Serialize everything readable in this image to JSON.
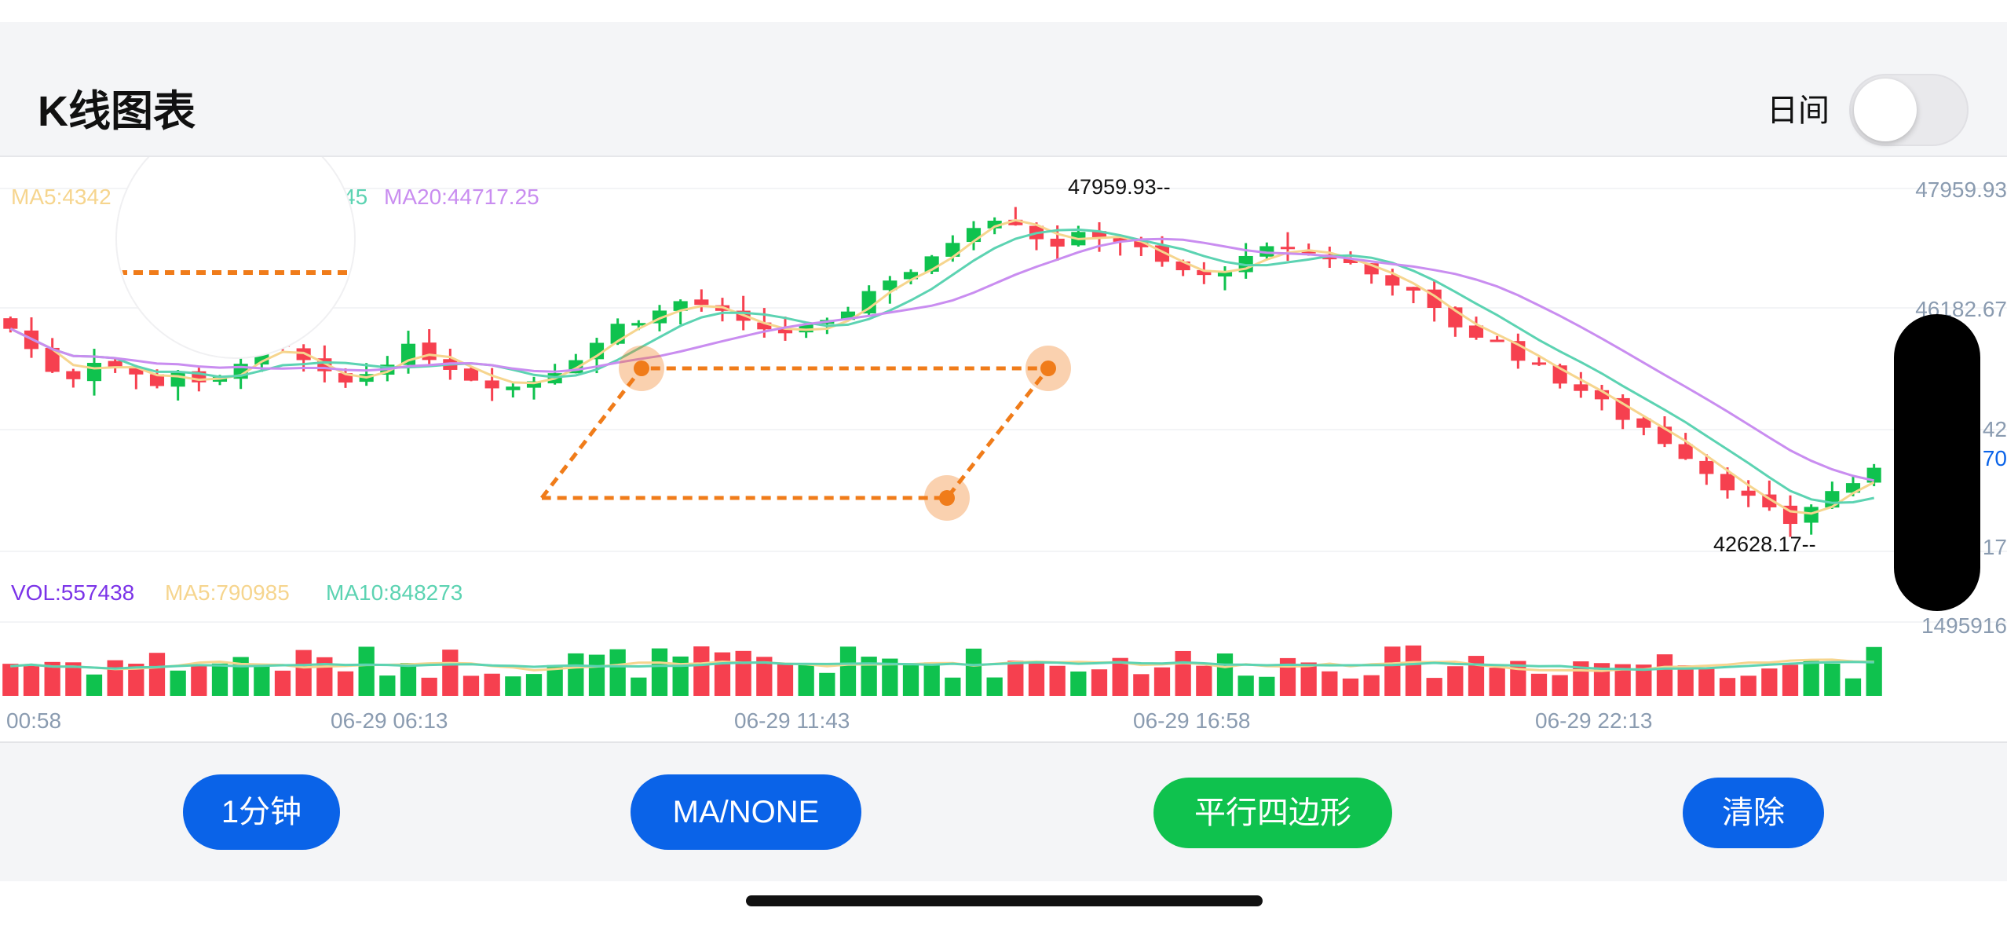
{
  "header": {
    "title": "K线图表",
    "day_label": "日间",
    "day_toggle_on": false
  },
  "legend": {
    "ma5": "MA5:4342",
    "ma10_partial": "45",
    "ma20": "MA20:44717.25"
  },
  "volume_legend": {
    "vol": "VOL:557438",
    "ma5": "MA5:790985",
    "ma10": "MA10:848273"
  },
  "price_axis": [
    "47959.93",
    "46182.67",
    "42",
    "70",
    "17",
    "1495916"
  ],
  "markers": {
    "high": "47959.93--",
    "low": "42628.17--"
  },
  "time_axis": [
    "00:58",
    "06-29 06:13",
    "06-29 11:43",
    "06-29 16:58",
    "06-29 22:13"
  ],
  "buttons": {
    "interval": "1分钟",
    "indicator": "MA/NONE",
    "drawing": "平行四边形",
    "clear": "清除"
  },
  "colors": {
    "up": "#0fc24e",
    "down": "#f6404f",
    "ma5": "#f6d58e",
    "ma10": "#5cd3b2",
    "ma20": "#c98df0",
    "drawing": "#f07c1a",
    "accent_blue": "#0a63e8"
  },
  "chart_data": {
    "type": "candlestick",
    "price_range": [
      42628.17,
      47959.93
    ],
    "high": 47959.93,
    "low": 42628.17,
    "candle_count": 100,
    "close_trend": [
      45900,
      45600,
      45300,
      45200,
      45450,
      45350,
      45200,
      45100,
      45300,
      45050,
      45150,
      45450,
      45650,
      45580,
      45400,
      45200,
      45100,
      45250,
      45450,
      45600,
      45500,
      45350,
      45180,
      45100,
      45050,
      45150,
      45300,
      45500,
      45700,
      45950,
      46050,
      46150,
      46300,
      46250,
      46100,
      45950,
      45900,
      45850,
      45900,
      45950,
      46200,
      46450,
      46650,
      46750,
      46900,
      47200,
      47450,
      47550,
      47480,
      47250,
      47150,
      47250,
      47300,
      47200,
      47050,
      46850,
      46750,
      46650,
      46800,
      46900,
      47050,
      47100,
      47000,
      46950,
      46850,
      46700,
      46600,
      46400,
      46150,
      45950,
      45800,
      45700,
      45500,
      45300,
      45150,
      45000,
      44800,
      44600,
      44450,
      44250,
      44050,
      43800,
      43600,
      43400,
      43200,
      43050,
      43300,
      43500,
      43650,
      43780
    ],
    "volume_range": [
      0,
      1495916
    ],
    "ma5_last": 790985,
    "ma10_last": 848273,
    "volume_last": 557438
  }
}
